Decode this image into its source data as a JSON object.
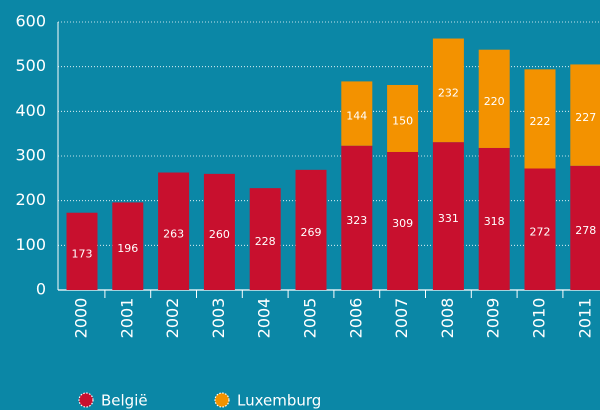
{
  "chart_data": {
    "type": "stacked_bar",
    "categories": [
      "2000",
      "2001",
      "2002",
      "2003",
      "2004",
      "2005",
      "2006",
      "2007",
      "2008",
      "2009",
      "2010",
      "2011"
    ],
    "series": [
      {
        "name": "België",
        "color": "#c8102e",
        "values": [
          173,
          196,
          263,
          260,
          228,
          269,
          323,
          309,
          331,
          318,
          272,
          278
        ]
      },
      {
        "name": "Luxemburg",
        "color": "#f39200",
        "values": [
          null,
          null,
          null,
          null,
          null,
          null,
          144,
          150,
          232,
          220,
          222,
          227
        ]
      }
    ],
    "ylim": [
      0,
      600
    ],
    "yticks": [
      0,
      100,
      200,
      300,
      400,
      500,
      600
    ],
    "grid": true
  }
}
